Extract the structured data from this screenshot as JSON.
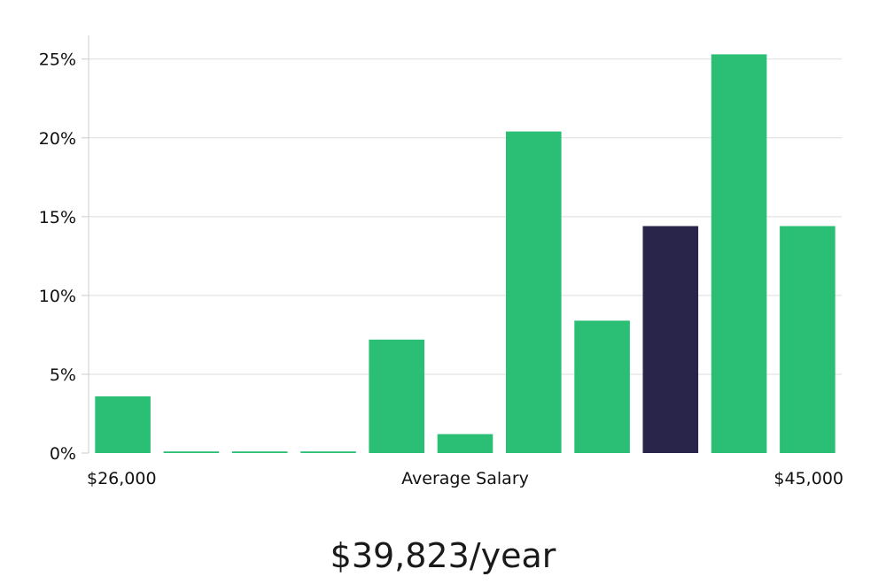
{
  "chart_data": {
    "type": "bar",
    "title": "",
    "xlabel": "Average Salary",
    "ylabel": "",
    "x_range_labels": {
      "min": "$26,000",
      "max": "$45,000"
    },
    "values": [
      3.6,
      0.1,
      0.1,
      0.1,
      7.2,
      1.2,
      20.4,
      8.4,
      14.4,
      25.3,
      14.4
    ],
    "highlight_index": 8,
    "ylim": [
      0,
      26.5
    ],
    "yticks": [
      0,
      5,
      10,
      15,
      20,
      25
    ],
    "ytick_labels": [
      "0%",
      "5%",
      "10%",
      "15%",
      "20%",
      "25%"
    ],
    "grid": true,
    "legend": "none",
    "colors": {
      "bar": "#2abf75",
      "highlight": "#28244a",
      "grid": "#dddddd",
      "axis": "#cccccc"
    }
  },
  "salary_display": "$39,823/year"
}
